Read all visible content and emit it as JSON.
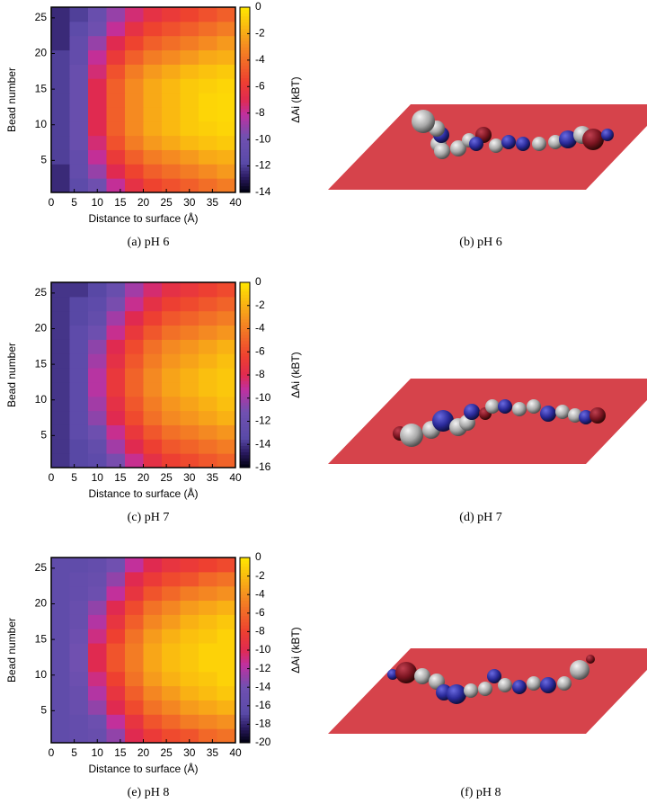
{
  "chart_data": [
    {
      "type": "heatmap",
      "xlabel": "Distance to surface (Å)",
      "ylabel": "Bead number",
      "colorbar_label": "ΔAi (kBT)",
      "caption": "(a) pH 6",
      "xlim": [
        0,
        40
      ],
      "xticks": [
        0,
        5,
        10,
        15,
        20,
        25,
        30,
        35,
        40
      ],
      "ylim": [
        0.5,
        26.5
      ],
      "yticks": [
        5,
        10,
        15,
        20,
        25
      ],
      "clim": [
        -14,
        0
      ],
      "cticks": [
        0,
        -2,
        -4,
        -6,
        -8,
        -10,
        -12,
        -14
      ],
      "xbins": [
        0,
        4,
        8,
        12,
        16,
        20,
        24,
        28,
        32,
        36,
        40
      ],
      "ybins": [
        0.5,
        2.5,
        4.5,
        6.5,
        8.5,
        10.5,
        12.5,
        14.5,
        16.5,
        18.5,
        20.5,
        22.5,
        24.5,
        26.5
      ],
      "values": [
        [
          -12.5,
          -11.5,
          -10,
          -8,
          -6.5,
          -5.5,
          -5,
          -4.5,
          -4,
          -3.5
        ],
        [
          -12.5,
          -11,
          -9,
          -7,
          -5.5,
          -4.5,
          -4,
          -3.5,
          -3,
          -2.5
        ],
        [
          -12,
          -11,
          -8,
          -6,
          -4.5,
          -3.5,
          -3,
          -2.5,
          -2,
          -1.8
        ],
        [
          -12,
          -10.5,
          -7.5,
          -5,
          -3.5,
          -2.5,
          -2,
          -1.5,
          -1.2,
          -1
        ],
        [
          -12,
          -10.5,
          -7,
          -4.5,
          -3,
          -2,
          -1.5,
          -1,
          -0.8,
          -0.6
        ],
        [
          -12,
          -10.5,
          -7,
          -4.5,
          -3,
          -2,
          -1.5,
          -1,
          -0.6,
          -0.5
        ],
        [
          -12,
          -10.5,
          -7,
          -4.5,
          -3,
          -2,
          -1.5,
          -1,
          -0.6,
          -0.5
        ],
        [
          -12,
          -10.5,
          -7,
          -4.5,
          -3,
          -2,
          -1.5,
          -1,
          -0.8,
          -0.6
        ],
        [
          -12,
          -10.5,
          -7.5,
          -5,
          -3.5,
          -2.5,
          -2,
          -1.5,
          -1.2,
          -1
        ],
        [
          -12,
          -11,
          -8,
          -6,
          -4.5,
          -3.5,
          -3,
          -2.5,
          -2,
          -1.8
        ],
        [
          -12.5,
          -11,
          -9,
          -7,
          -5.5,
          -4.5,
          -4,
          -3.5,
          -3,
          -2.5
        ],
        [
          -12.5,
          -11.5,
          -10,
          -8,
          -6.5,
          -5.5,
          -5,
          -4.5,
          -4,
          -3.5
        ],
        [
          -12.5,
          -12,
          -10.5,
          -9,
          -7.5,
          -6.5,
          -6,
          -5.5,
          -5,
          -4.5
        ]
      ]
    },
    {
      "type": "heatmap",
      "xlabel": "Distance to surface (Å)",
      "ylabel": "Bead number",
      "colorbar_label": "ΔAi (kBT)",
      "caption": "(c) pH 7",
      "xlim": [
        0,
        40
      ],
      "xticks": [
        0,
        5,
        10,
        15,
        20,
        25,
        30,
        35,
        40
      ],
      "ylim": [
        0.5,
        26.5
      ],
      "yticks": [
        5,
        10,
        15,
        20,
        25
      ],
      "clim": [
        -16,
        0
      ],
      "cticks": [
        0,
        -2,
        -4,
        -6,
        -8,
        -10,
        -12,
        -14,
        -16
      ],
      "xbins": [
        0,
        4,
        8,
        12,
        16,
        20,
        24,
        28,
        32,
        36,
        40
      ],
      "ybins": [
        0.5,
        2.5,
        4.5,
        6.5,
        8.5,
        10.5,
        12.5,
        14.5,
        16.5,
        18.5,
        20.5,
        22.5,
        24.5,
        26.5
      ],
      "values": [
        [
          -14,
          -13.5,
          -13,
          -11,
          -9,
          -7.5,
          -6.5,
          -6,
          -5.5,
          -5
        ],
        [
          -14,
          -13.5,
          -12.5,
          -10,
          -8,
          -6.5,
          -5.5,
          -5,
          -4.5,
          -4
        ],
        [
          -14,
          -13,
          -11.5,
          -9,
          -7,
          -5.5,
          -4.5,
          -4,
          -3.5,
          -3
        ],
        [
          -14,
          -13,
          -10.5,
          -8,
          -6,
          -4.5,
          -3.5,
          -3,
          -2.5,
          -2
        ],
        [
          -14,
          -13,
          -10,
          -7.5,
          -5.5,
          -4,
          -3,
          -2.5,
          -2,
          -1.5
        ],
        [
          -14,
          -13,
          -9.5,
          -7,
          -5,
          -3.5,
          -2.5,
          -2,
          -1.5,
          -1.2
        ],
        [
          -14,
          -13,
          -9.5,
          -7,
          -5,
          -3.5,
          -2.5,
          -2,
          -1.5,
          -1.2
        ],
        [
          -14,
          -13,
          -10,
          -7.5,
          -5.5,
          -4,
          -3,
          -2.5,
          -2,
          -1.5
        ],
        [
          -14,
          -13,
          -10.5,
          -8,
          -6,
          -4.5,
          -3.5,
          -3,
          -2.5,
          -2
        ],
        [
          -14,
          -13,
          -11.5,
          -9,
          -7,
          -5.5,
          -4.5,
          -4,
          -3.5,
          -3
        ],
        [
          -14,
          -13.5,
          -12.5,
          -10,
          -8,
          -6.5,
          -5.5,
          -5,
          -4.5,
          -4
        ],
        [
          -14,
          -13.5,
          -13,
          -11,
          -9,
          -7.5,
          -6.5,
          -6,
          -5.5,
          -5
        ],
        [
          -14,
          -14,
          -13.5,
          -12,
          -10,
          -8.5,
          -7.5,
          -7,
          -6.5,
          -6
        ]
      ]
    },
    {
      "type": "heatmap",
      "xlabel": "Distance to surface (Å)",
      "ylabel": "Bead number",
      "colorbar_label": "ΔAi (kBT)",
      "caption": "(e) pH 8",
      "xlim": [
        0,
        40
      ],
      "xticks": [
        0,
        5,
        10,
        15,
        20,
        25,
        30,
        35,
        40
      ],
      "ylim": [
        0.5,
        26.5
      ],
      "yticks": [
        5,
        10,
        15,
        20,
        25
      ],
      "clim": [
        -20,
        0
      ],
      "cticks": [
        0,
        -2,
        -4,
        -6,
        -8,
        -10,
        -12,
        -14,
        -16,
        -18,
        -20
      ],
      "xbins": [
        0,
        4,
        8,
        12,
        16,
        20,
        24,
        28,
        32,
        36,
        40
      ],
      "ybins": [
        0.5,
        2.5,
        4.5,
        6.5,
        8.5,
        10.5,
        12.5,
        14.5,
        16.5,
        18.5,
        20.5,
        22.5,
        24.5,
        26.5
      ],
      "values": [
        [
          -16,
          -15.5,
          -15,
          -13,
          -10,
          -8.5,
          -7.5,
          -7,
          -6,
          -5.5
        ],
        [
          -16,
          -15.5,
          -14.5,
          -11.5,
          -9,
          -7,
          -6,
          -5,
          -4.5,
          -4
        ],
        [
          -16,
          -15,
          -13,
          -10,
          -7.5,
          -5.5,
          -4.5,
          -3.5,
          -3,
          -2.5
        ],
        [
          -16,
          -15,
          -12,
          -9,
          -6.5,
          -4.5,
          -3.5,
          -2.5,
          -2,
          -1.5
        ],
        [
          -16,
          -14.5,
          -11,
          -8,
          -5.5,
          -3.5,
          -2.5,
          -1.8,
          -1.5,
          -1
        ],
        [
          -16,
          -14,
          -10,
          -7,
          -5,
          -3,
          -2,
          -1.5,
          -1,
          -1
        ],
        [
          -16,
          -14,
          -10,
          -7,
          -5,
          -3,
          -2,
          -1.5,
          -1,
          -1
        ],
        [
          -16,
          -14.5,
          -11,
          -8,
          -5.5,
          -3.5,
          -2.5,
          -1.8,
          -1.5,
          -1
        ],
        [
          -16,
          -15,
          -12,
          -9,
          -6.5,
          -4.5,
          -3.5,
          -2.5,
          -2,
          -1.5
        ],
        [
          -16,
          -15,
          -13,
          -10,
          -7.5,
          -5.5,
          -4.5,
          -3.5,
          -3,
          -2.5
        ],
        [
          -16,
          -15.5,
          -14.5,
          -11.5,
          -9,
          -7,
          -6,
          -5,
          -4.5,
          -4
        ],
        [
          -16,
          -15.5,
          -15,
          -13,
          -10,
          -8.5,
          -7.5,
          -7,
          -6,
          -5.5
        ],
        [
          -16,
          -16,
          -15.5,
          -14,
          -11.5,
          -10,
          -9,
          -8.5,
          -8,
          -7.5
        ]
      ]
    }
  ],
  "renders": [
    {
      "caption": "(b) pH 6"
    },
    {
      "caption": "(d) pH 7"
    },
    {
      "caption": "(f) pH 8"
    }
  ]
}
